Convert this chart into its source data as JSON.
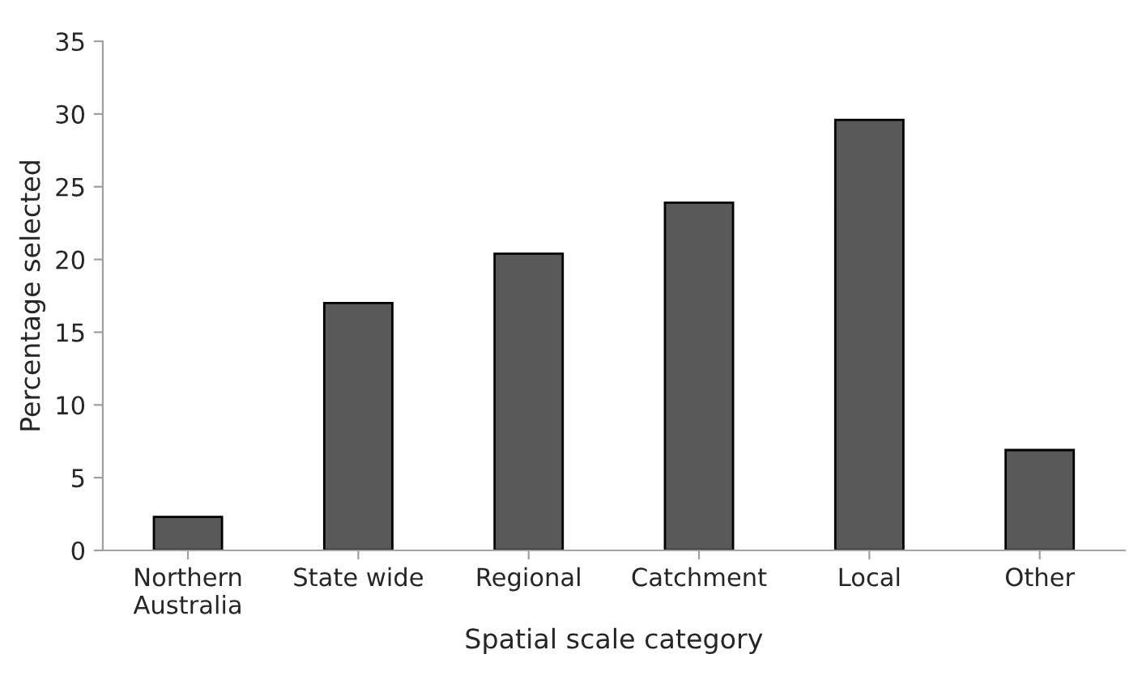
{
  "chart_data": {
    "type": "bar",
    "xlabel": "Spatial scale category",
    "ylabel": "Percentage selected",
    "categories": [
      "Northern\nAustralia",
      "State wide",
      "Regional",
      "Catchment",
      "Local",
      "Other"
    ],
    "values": [
      2.3,
      17.0,
      20.4,
      23.9,
      29.6,
      6.9
    ],
    "color": "#595959",
    "ylim": [
      0,
      35
    ],
    "yticks": [
      0,
      5,
      10,
      15,
      20,
      25,
      30,
      35
    ],
    "grid": false,
    "legend": false
  }
}
